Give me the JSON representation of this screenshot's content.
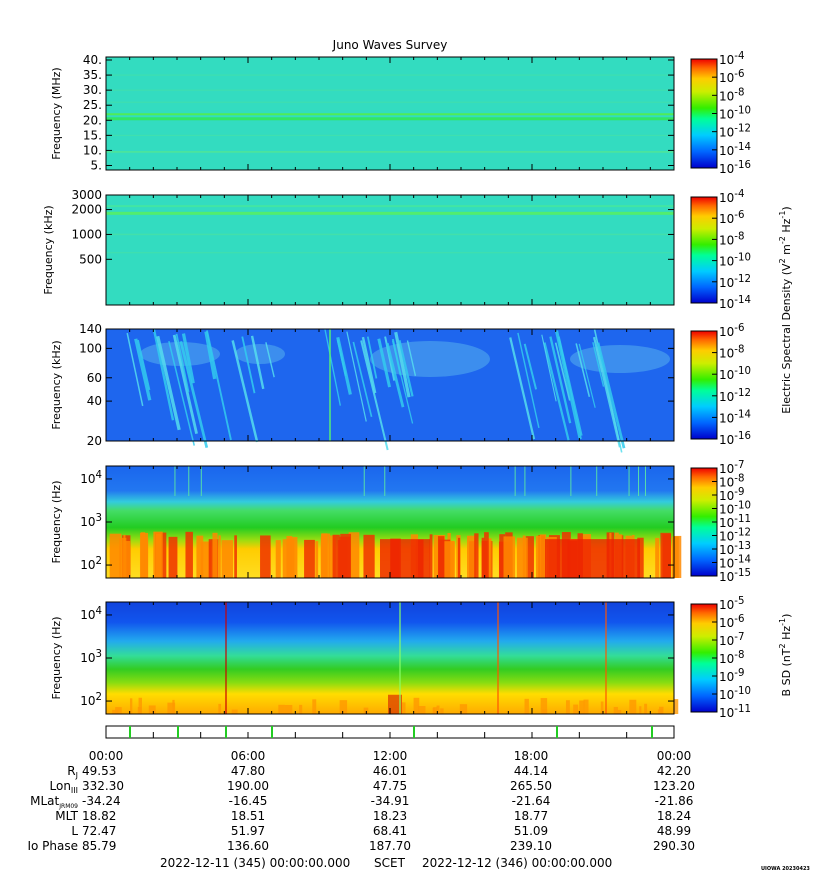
{
  "title": "Juno Waves Survey",
  "footer": {
    "start": "2022-12-11 (345) 00:00:00.000",
    "scet": "SCET",
    "end": "2022-12-12 (346) 00:00:00.000",
    "credit": "UIOWA 20230423"
  },
  "chart_data": [
    {
      "type": "heatmap",
      "ylabel": "Frequency (MHz)",
      "y_ticks": [
        "40.",
        "35.",
        "30.",
        "25.",
        "20.",
        "15.",
        "10.",
        "5."
      ],
      "ylim": [
        3.5,
        41
      ],
      "colorbar": {
        "ticks": [
          "10^-4",
          "10^-6",
          "10^-8",
          "10^-10",
          "10^-12",
          "10^-14",
          "10^-16"
        ],
        "label": ""
      }
    },
    {
      "type": "heatmap",
      "ylabel": "Frequency (kHz)",
      "y_ticks": [
        "3000",
        "2000",
        "1000",
        "500"
      ],
      "ylim": [
        140,
        3000
      ],
      "yscale": "log",
      "colorbar": {
        "ticks": [
          "10^-4",
          "10^-6",
          "10^-8",
          "10^-10",
          "10^-12",
          "10^-14"
        ],
        "label": ""
      }
    },
    {
      "type": "heatmap",
      "ylabel": "Frequency (kHz)",
      "y_ticks": [
        "140",
        "100",
        "60",
        "40",
        "20"
      ],
      "ylim": [
        20,
        140
      ],
      "yscale": "log",
      "colorbar": {
        "ticks": [
          "10^-6",
          "10^-8",
          "10^-10",
          "10^-12",
          "10^-14",
          "10^-16"
        ],
        "label": "Electric Spectral Density (V^2 m^-2 Hz^-1)"
      }
    },
    {
      "type": "heatmap",
      "ylabel": "Frequency (Hz)",
      "y_ticks": [
        "10^4",
        "10^3",
        "10^2"
      ],
      "ylim": [
        50,
        20000
      ],
      "yscale": "log",
      "colorbar": {
        "ticks": [
          "10^-7",
          "10^-8",
          "10^-9",
          "10^-10",
          "10^-11",
          "10^-12",
          "10^-13",
          "10^-14",
          "10^-15"
        ],
        "label": ""
      }
    },
    {
      "type": "heatmap",
      "ylabel": "Frequency (Hz)",
      "y_ticks": [
        "10^4",
        "10^3",
        "10^2"
      ],
      "ylim": [
        50,
        20000
      ],
      "yscale": "log",
      "colorbar": {
        "ticks": [
          "10^-5",
          "10^-6",
          "10^-7",
          "10^-8",
          "10^-9",
          "10^-10",
          "10^-11"
        ],
        "label": "B SD (nT^2 Hz^-1)"
      }
    }
  ],
  "ephemeris": {
    "times": [
      "00:00",
      "06:00",
      "12:00",
      "18:00",
      "00:00"
    ],
    "rows": [
      {
        "label": "R",
        "sub": "J",
        "values": [
          "49.53",
          "47.80",
          "46.01",
          "44.14",
          "42.20"
        ]
      },
      {
        "label": "Lon",
        "sub": "III",
        "values": [
          "332.30",
          "190.00",
          "47.75",
          "265.50",
          "123.20"
        ]
      },
      {
        "label": "MLat",
        "sub": "JRM09",
        "values": [
          "-34.24",
          "-16.45",
          "-34.91",
          "-21.64",
          "-21.86"
        ]
      },
      {
        "label": "MLT",
        "sub": "",
        "values": [
          "18.82",
          "18.51",
          "18.23",
          "18.77",
          "18.24"
        ]
      },
      {
        "label": "L",
        "sub": "",
        "values": [
          "72.47",
          "51.97",
          "68.41",
          "51.09",
          "48.99"
        ]
      },
      {
        "label": "Io Phase",
        "sub": "",
        "values": [
          "85.79",
          "136.60",
          "187.70",
          "239.10",
          "290.30"
        ]
      }
    ]
  },
  "colors": {
    "background_main": "#33ccaa",
    "low_panel_bg": "#2266ee",
    "hot": "#ee2200"
  }
}
